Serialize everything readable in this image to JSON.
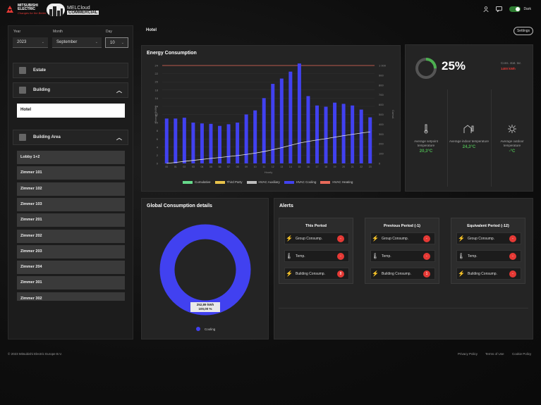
{
  "header": {
    "brand_line1": "MITSUBISHI",
    "brand_line2": "ELECTRIC",
    "brand_tagline": "Changes for the Better",
    "product_line1": "MELCloud",
    "product_line2": "COMMERCIAL",
    "theme_label": "Dark"
  },
  "filters": {
    "year_label": "Year",
    "year_value": "2023",
    "month_label": "Month",
    "month_value": "September",
    "day_label": "Day",
    "day_value": "10"
  },
  "tree": {
    "estate_label": "Estate",
    "building_label": "Building",
    "hotel_label": "Hotel",
    "area_label": "Building Area",
    "zones": [
      "Lobby 1+2",
      "Zimmer 101",
      "Zimmer 102",
      "Zimmer 103",
      "Zimmer 201",
      "Zimmer 202",
      "Zimmer 203",
      "Zimmer 204",
      "Zimmer 301",
      "Zimmer 302"
    ]
  },
  "main": {
    "breadcrumb": "Hotel",
    "settings_label": "Settings"
  },
  "energy_chart": {
    "title": "Energy Consumption",
    "ylabel_left": "Energy [kWh]",
    "ylabel_right": "Cumul.",
    "xlabel": "Hourly"
  },
  "chart_data": {
    "type": "bar",
    "title": "Energy Consumption",
    "categories": [
      "00",
      "01",
      "02",
      "03",
      "04",
      "05",
      "06",
      "07",
      "08",
      "09",
      "10",
      "11",
      "12",
      "13",
      "14",
      "15",
      "16",
      "17",
      "18",
      "19",
      "20",
      "21",
      "22",
      "23"
    ],
    "y_ticks_left": [
      "0",
      "2",
      "4",
      "6",
      "8",
      "10",
      "12",
      "14",
      "16",
      "18",
      "20",
      "22",
      "24"
    ],
    "y_ticks_right": [
      "0",
      "100",
      "200",
      "300",
      "400",
      "500",
      "600",
      "700",
      "800",
      "900",
      "1 000"
    ],
    "ylim": [
      0,
      24
    ],
    "series": [
      {
        "name": "HVAC Cooling",
        "values": [
          11,
          11,
          11.2,
          10,
          9.8,
          9.7,
          9.2,
          9.6,
          10,
          12,
          13,
          16,
          19.5,
          20.8,
          22.5,
          24.5,
          16.5,
          14.2,
          13.9,
          14.9,
          14.6,
          14.2,
          13.2,
          11.3
        ]
      },
      {
        "name": "Cumulative",
        "values": [
          0,
          10,
          21,
          31,
          41,
          51,
          60,
          70,
          80,
          92,
          105,
          121,
          140,
          161,
          184,
          208,
          225,
          239,
          253,
          268,
          283,
          297,
          310,
          322
        ]
      }
    ],
    "legend": [
      "Cumulative",
      "Third Party",
      "HVAC Auxiliary",
      "HVAC Cooling",
      "HVAC Heating"
    ],
    "legend_colors": [
      "#66d98b",
      "#e8c24a",
      "#bdbdbd",
      "#4141f0",
      "#e86a5a"
    ],
    "legend_position": "bottom"
  },
  "kpis": {
    "percent": "25%",
    "consumption_label": "Cons. stat. tar.",
    "consumption_value": "1400 kWh",
    "setpoint_label": "Average setpoint temperature",
    "setpoint_value": "20,3°C",
    "indoor_label": "Average indoor temperature",
    "indoor_value": "24,3°C",
    "outdoor_label": "Average outdoor temperature",
    "outdoor_value": "-°C"
  },
  "global": {
    "title": "Global Consumption details",
    "donut_value": "252,89 kWh",
    "donut_percent": "100,00 %",
    "legend": "Cooling"
  },
  "alerts": {
    "title": "Alerts",
    "columns": [
      {
        "header": "This Period",
        "items": [
          {
            "label": "Group Consump.",
            "badge": "-"
          },
          {
            "label": "Temp.",
            "badge": "-"
          },
          {
            "label": "Building Consump.",
            "badge": "8"
          }
        ]
      },
      {
        "header": "Previous Period (-1)",
        "items": [
          {
            "label": "Group Consump.",
            "badge": "-"
          },
          {
            "label": "Temp.",
            "badge": "-"
          },
          {
            "label": "Building Consump.",
            "badge": "1"
          }
        ]
      },
      {
        "header": "Equivalent Period (-12)",
        "items": [
          {
            "label": "Group Consump.",
            "badge": "-"
          },
          {
            "label": "Temp.",
            "badge": "-"
          },
          {
            "label": "Building Consump.",
            "badge": "-"
          }
        ]
      }
    ]
  },
  "footer": {
    "copyright": "© 2023 Mitsubishi Electric Europe B.V.",
    "privacy": "Privacy Policy",
    "terms": "Terms of Use",
    "cookie": "Cookie Policy"
  },
  "colors": {
    "accent": "#4141f0",
    "ok": "#4caf50",
    "alert": "#e53935"
  }
}
